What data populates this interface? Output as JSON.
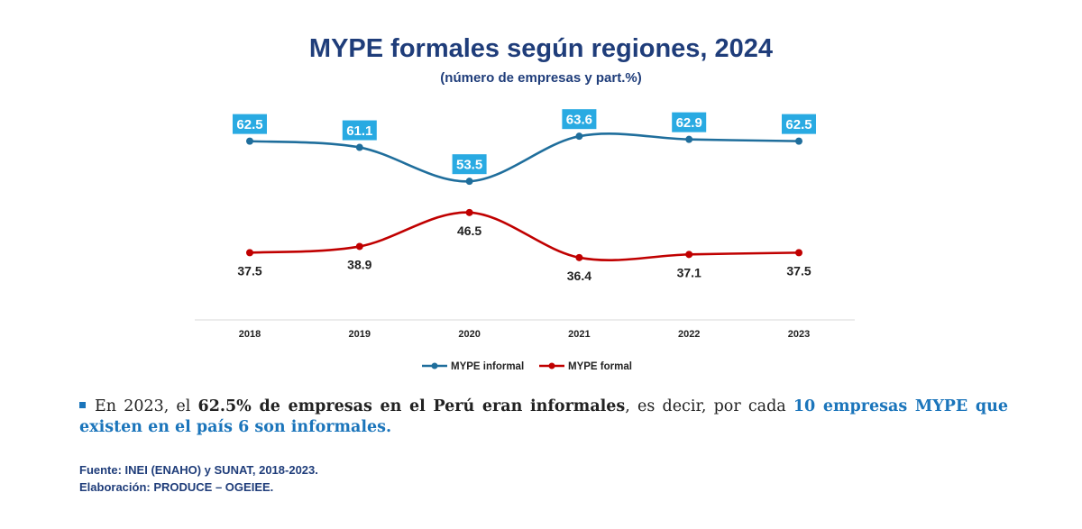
{
  "header": {
    "title": "MYPE formales según regiones, 2024",
    "subtitle": "(número de empresas y part.%)"
  },
  "chart_data": {
    "type": "line",
    "categories": [
      "2018",
      "2019",
      "2020",
      "2021",
      "2022",
      "2023"
    ],
    "series": [
      {
        "name": "MYPE informal",
        "values": [
          62.5,
          61.1,
          53.5,
          63.6,
          62.9,
          62.5
        ],
        "color": "#1f6e9c",
        "label_bg": "#29aae2"
      },
      {
        "name": "MYPE formal",
        "values": [
          37.5,
          38.9,
          46.5,
          36.4,
          37.1,
          37.5
        ],
        "color": "#c00000"
      }
    ],
    "ylim": [
      0,
      70
    ],
    "grid": false,
    "legend": "bottom"
  },
  "note": {
    "t1": "En 2023, el ",
    "b1": "62.5% de empresas en el Perú eran informales",
    "t2": ", es decir, por cada ",
    "b2": "10 empresas MYPE que existen en el país 6 son informales."
  },
  "source": {
    "line1": "Fuente: INEI (ENAHO) y SUNAT, 2018-2023.",
    "line2": "Elaboración: PRODUCE – OGEIEE."
  }
}
